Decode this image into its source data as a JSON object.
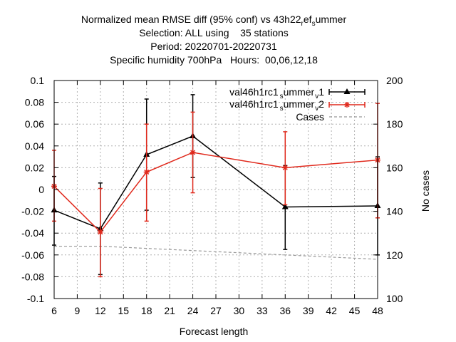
{
  "chart_data": {
    "type": "line",
    "title_lines": [
      "Normalized mean RMSE diff (95% conf) vs 43h22_ref_summer",
      "Selection: ALL using    35 stations",
      "Period: 20220701-20220731",
      "Specific humidity 700hPa   Hours:  00,06,12,18"
    ],
    "xlabel": "Forecast length",
    "ylabel": "",
    "y2label": "No cases",
    "xlim": [
      6,
      48
    ],
    "ylim": [
      -0.1,
      0.1
    ],
    "y2lim": [
      100,
      200
    ],
    "xticks": [
      "6",
      "9",
      "12",
      "15",
      "18",
      "21",
      "24",
      "27",
      "30",
      "33",
      "36",
      "39",
      "42",
      "45",
      "48"
    ],
    "yticks": [
      "0.1",
      "0.08",
      "0.06",
      "0.04",
      "0.02",
      "0",
      "-0.02",
      "-0.04",
      "-0.06",
      "-0.08",
      "-0.1"
    ],
    "y2ticks": [
      "200",
      "180",
      "160",
      "140",
      "120",
      "100"
    ],
    "grid": true,
    "legend_position": "top-right",
    "series": [
      {
        "name": "val46h1rc1_summer_v1",
        "color": "#000000",
        "marker": "triangle",
        "x": [
          6,
          12,
          18,
          24,
          36,
          48
        ],
        "y": [
          -0.019,
          -0.036,
          0.032,
          0.049,
          -0.016,
          -0.015
        ],
        "err_low": [
          -0.051,
          -0.078,
          -0.019,
          0.011,
          -0.055,
          -0.06
        ],
        "err_high": [
          0.012,
          0.006,
          0.083,
          0.087,
          0.022,
          0.03
        ]
      },
      {
        "name": "val46h1rc1_summer_v2",
        "color": "#e0291c",
        "marker": "star",
        "x": [
          6,
          12,
          18,
          24,
          36,
          48
        ],
        "y": [
          0.003,
          -0.039,
          0.016,
          0.034,
          0.02,
          0.027
        ],
        "err_low": [
          -0.029,
          -0.08,
          -0.029,
          -0.003,
          -0.014,
          -0.026
        ],
        "err_high": [
          0.036,
          0.001,
          0.06,
          0.071,
          0.053,
          0.079
        ]
      }
    ],
    "cases": {
      "name": "Cases",
      "color": "#999999",
      "axis": "y2",
      "x": [
        6,
        12,
        18,
        24,
        36,
        48
      ],
      "y": [
        124,
        124,
        123,
        122,
        120,
        118
      ]
    }
  },
  "legend": {
    "line1_base": "val46h1rc1",
    "line1_sub1": "s",
    "line1_mid": "ummer",
    "line1_sub2": "v",
    "line1_end": "1",
    "line2_base": "val46h1rc1",
    "line2_sub1": "s",
    "line2_mid": "ummer",
    "line2_sub2": "v",
    "line2_end": "2",
    "line3": "Cases"
  },
  "title": {
    "line1_a": "Normalized mean RMSE diff (95% conf) vs 43h22",
    "line1_sub1": "r",
    "line1_b": "ef",
    "line1_sub2": "s",
    "line1_c": "ummer"
  }
}
